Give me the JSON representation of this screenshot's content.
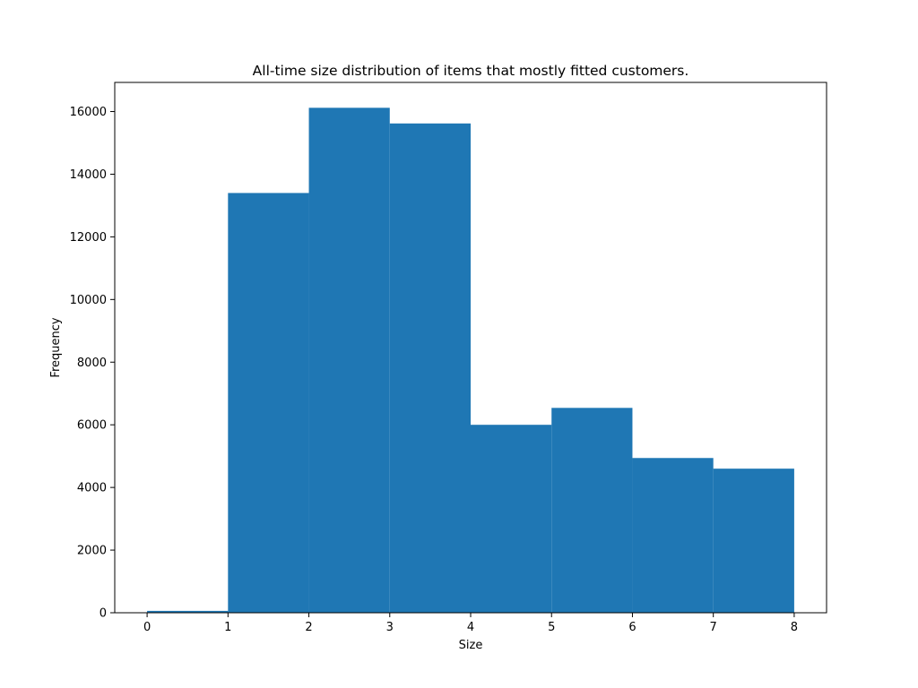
{
  "chart_data": {
    "type": "bar",
    "subtype": "histogram",
    "title": "All-time size distribution of items that mostly fitted customers.",
    "xlabel": "Size",
    "ylabel": "Frequency",
    "bins": [
      {
        "start": 0,
        "end": 1,
        "value": 60
      },
      {
        "start": 1,
        "end": 2,
        "value": 13400
      },
      {
        "start": 2,
        "end": 3,
        "value": 16120
      },
      {
        "start": 3,
        "end": 4,
        "value": 15620
      },
      {
        "start": 4,
        "end": 5,
        "value": 6000
      },
      {
        "start": 5,
        "end": 6,
        "value": 6540
      },
      {
        "start": 6,
        "end": 7,
        "value": 4940
      },
      {
        "start": 7,
        "end": 8,
        "value": 4600
      }
    ],
    "xlim": [
      -0.4,
      8.4
    ],
    "ylim": [
      0,
      16930
    ],
    "xticks": [
      "0",
      "1",
      "2",
      "3",
      "4",
      "5",
      "6",
      "7",
      "8"
    ],
    "yticks": [
      "0",
      "2000",
      "4000",
      "6000",
      "8000",
      "10000",
      "12000",
      "14000",
      "16000"
    ],
    "grid": false,
    "legend": "none",
    "bar_color": "#1f77b4"
  }
}
